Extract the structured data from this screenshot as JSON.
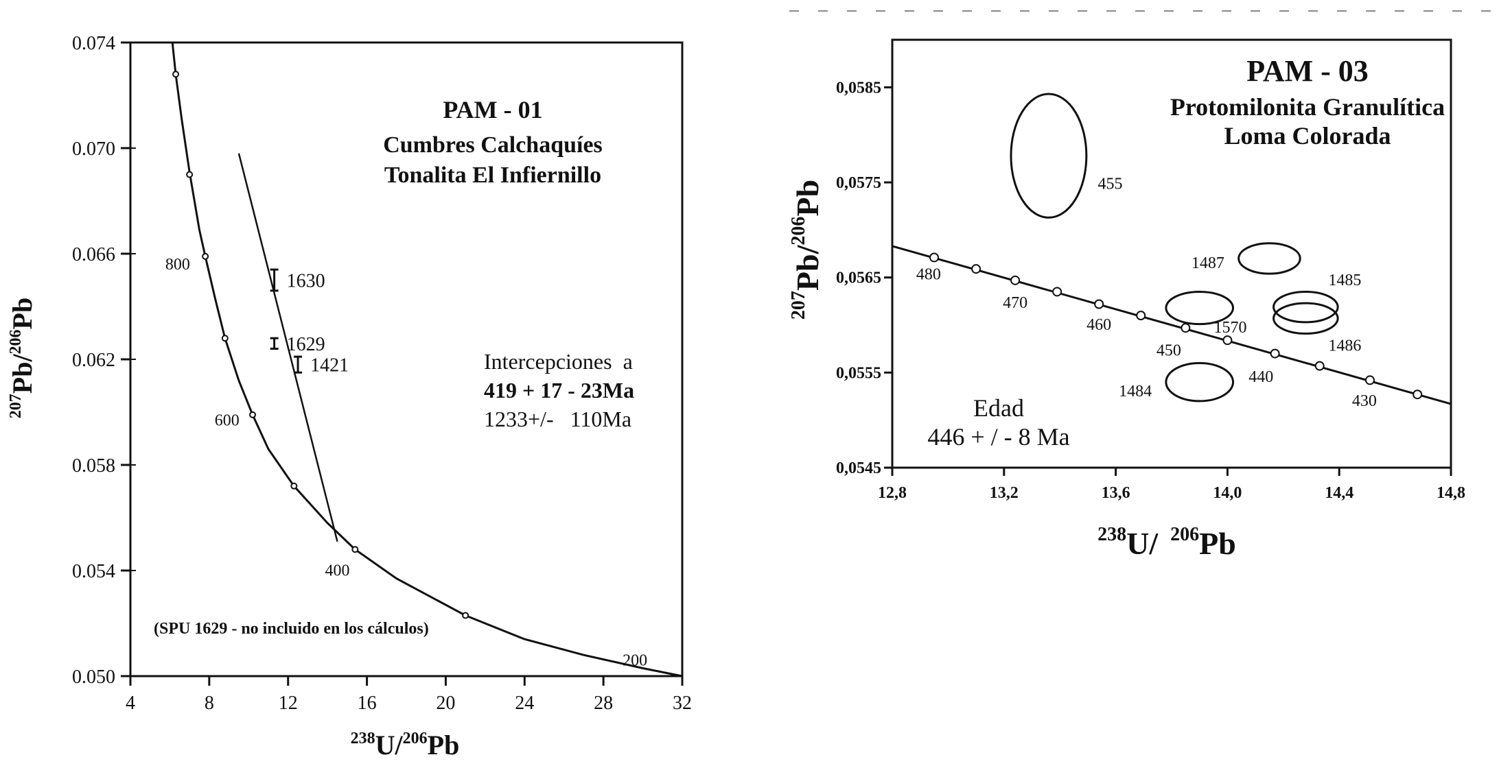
{
  "chart_data": [
    {
      "id": "pam01",
      "type": "scatter",
      "title": "PAM - 01",
      "subtitle_lines": [
        "Cumbres Calchaquíes",
        "Tonalita El Infiernillo"
      ],
      "xlabel": {
        "sup1": "238",
        "base1": "U/",
        "sup2": "206",
        "base2": "Pb"
      },
      "ylabel": {
        "sup1": "207",
        "base1": "Pb/",
        "sup2": "206",
        "base2": "Pb"
      },
      "xlim": [
        4,
        32
      ],
      "ylim": [
        0.05,
        0.074
      ],
      "x_ticks": [
        "4",
        "8",
        "12",
        "16",
        "20",
        "24",
        "28",
        "32"
      ],
      "y_ticks": [
        "0.050",
        "0.054",
        "0.058",
        "0.062",
        "0.066",
        "0.070",
        "0.074"
      ],
      "concordia": [
        {
          "x": 6.13,
          "y": 0.074
        },
        {
          "x": 6.3,
          "y": 0.0728
        },
        {
          "x": 6.6,
          "y": 0.0711
        },
        {
          "x": 7.0,
          "y": 0.0691
        },
        {
          "x": 7.5,
          "y": 0.0669
        },
        {
          "x": 7.8,
          "y": 0.0659
        },
        {
          "x": 8.3,
          "y": 0.0643
        },
        {
          "x": 8.8,
          "y": 0.0628
        },
        {
          "x": 9.5,
          "y": 0.0612
        },
        {
          "x": 10.2,
          "y": 0.0599
        },
        {
          "x": 11.0,
          "y": 0.0586
        },
        {
          "x": 12.3,
          "y": 0.0572
        },
        {
          "x": 14.0,
          "y": 0.0558
        },
        {
          "x": 15.4,
          "y": 0.0548
        },
        {
          "x": 17.5,
          "y": 0.0537
        },
        {
          "x": 21.0,
          "y": 0.0523
        },
        {
          "x": 24.0,
          "y": 0.0514
        },
        {
          "x": 27.0,
          "y": 0.0508
        },
        {
          "x": 30.0,
          "y": 0.0503
        },
        {
          "x": 32.0,
          "y": 0.05
        }
      ],
      "age_markers": [
        {
          "x": 6.3,
          "y": 0.0728
        },
        {
          "x": 7.0,
          "y": 0.069
        },
        {
          "x": 7.8,
          "y": 0.0659
        },
        {
          "x": 8.8,
          "y": 0.0628
        },
        {
          "x": 10.2,
          "y": 0.0599
        },
        {
          "x": 12.3,
          "y": 0.0572
        },
        {
          "x": 15.4,
          "y": 0.0548
        },
        {
          "x": 21.0,
          "y": 0.0523
        }
      ],
      "age_labels": [
        {
          "text": "800",
          "x": 6.4,
          "y": 0.0654
        },
        {
          "text": "600",
          "x": 8.9,
          "y": 0.0595
        },
        {
          "text": "400",
          "x": 14.5,
          "y": 0.0538
        },
        {
          "text": "200",
          "x": 29.6,
          "y": 0.0504
        }
      ],
      "discordia": [
        {
          "x": 9.5,
          "y": 0.0698
        },
        {
          "x": 14.5,
          "y": 0.0551
        }
      ],
      "samples": [
        {
          "label": "1630",
          "x": 11.3,
          "y": 0.065,
          "err": 0.0004
        },
        {
          "label": "1629",
          "x": 11.3,
          "y": 0.0626,
          "err": 0.0002
        },
        {
          "label": "1421",
          "x": 12.5,
          "y": 0.0618,
          "err": 0.0003
        }
      ],
      "intercepts": [
        "Intercepciones  a",
        "419 + 17 - 23Ma",
        "1233+/-   110Ma"
      ],
      "note": "(SPU 1629 - no incluido en los cálculos)"
    },
    {
      "id": "pam03",
      "type": "scatter",
      "title": "PAM - 03",
      "subtitle_lines": [
        "Protomilonita Granulítica",
        "Loma Colorada"
      ],
      "xlabel": {
        "sup1": "238",
        "base1": "U/",
        "sup2": "206",
        "base2": "Pb"
      },
      "ylabel": {
        "sup1": "207",
        "base1": "Pb/",
        "sup2": "206",
        "base2": "Pb"
      },
      "xlim": [
        12.8,
        14.8
      ],
      "ylim": [
        0.0545,
        0.059
      ],
      "x_ticks": [
        "12,8",
        "13,2",
        "13,6",
        "14,0",
        "14,4",
        "14,8"
      ],
      "y_ticks": [
        "0,0545",
        "0,0555",
        "0,0565",
        "0,0575",
        "0,0585"
      ],
      "concordia": [
        {
          "x": 12.8,
          "y": 0.05683
        },
        {
          "x": 14.8,
          "y": 0.05517
        }
      ],
      "age_markers": [
        {
          "x": 12.95,
          "y": 0.05671
        },
        {
          "x": 13.1,
          "y": 0.05659
        },
        {
          "x": 13.24,
          "y": 0.05647
        },
        {
          "x": 13.39,
          "y": 0.05635
        },
        {
          "x": 13.54,
          "y": 0.05622
        },
        {
          "x": 13.69,
          "y": 0.0561
        },
        {
          "x": 13.85,
          "y": 0.05597
        },
        {
          "x": 14.0,
          "y": 0.05584
        },
        {
          "x": 14.17,
          "y": 0.0557
        },
        {
          "x": 14.33,
          "y": 0.05557
        },
        {
          "x": 14.51,
          "y": 0.05542
        },
        {
          "x": 14.68,
          "y": 0.05527
        }
      ],
      "age_labels": [
        {
          "text": "480",
          "x": 12.93,
          "y": 0.05648
        },
        {
          "text": "470",
          "x": 13.24,
          "y": 0.05618
        },
        {
          "text": "460",
          "x": 13.54,
          "y": 0.05595
        },
        {
          "text": "450",
          "x": 13.79,
          "y": 0.05568
        },
        {
          "text": "440",
          "x": 14.12,
          "y": 0.0554
        },
        {
          "text": "430",
          "x": 14.49,
          "y": 0.05515
        }
      ],
      "ellipses": [
        {
          "label": "455",
          "cx": 13.36,
          "cy": 0.05778,
          "rx": 0.135,
          "ry": 0.00065,
          "label_x": 13.58,
          "label_y": 0.05743
        },
        {
          "label": "1487",
          "cx": 14.15,
          "cy": 0.0567,
          "rx": 0.11,
          "ry": 0.00016,
          "label_x": 13.93,
          "label_y": 0.0566
        },
        {
          "label": "1570",
          "cx": 13.9,
          "cy": 0.05618,
          "rx": 0.12,
          "ry": 0.00017,
          "label_x": 14.01,
          "label_y": 0.05592
        },
        {
          "label": "1485",
          "cx": 14.28,
          "cy": 0.05619,
          "rx": 0.115,
          "ry": 0.00016,
          "label_x": 14.42,
          "label_y": 0.05642
        },
        {
          "label": "1486",
          "cx": 14.28,
          "cy": 0.05607,
          "rx": 0.115,
          "ry": 0.00016,
          "label_x": 14.42,
          "label_y": 0.05573
        },
        {
          "label": "1484",
          "cx": 13.9,
          "cy": 0.0554,
          "rx": 0.12,
          "ry": 0.0002,
          "label_x": 13.67,
          "label_y": 0.05525
        }
      ],
      "age_result": [
        "Edad",
        "446 + / - 8 Ma"
      ]
    }
  ]
}
